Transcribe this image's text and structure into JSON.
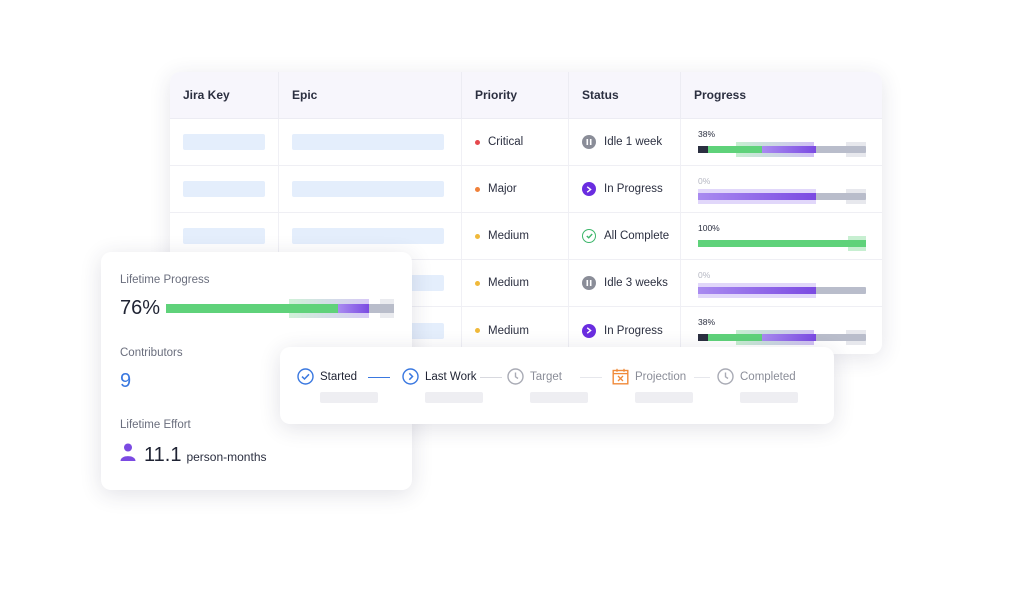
{
  "table": {
    "columns": [
      "Jira Key",
      "Epic",
      "Priority",
      "Status",
      "Progress"
    ],
    "rows": [
      {
        "priority": "Critical",
        "priority_color": "#e5484d",
        "status": "Idle 1 week",
        "status_icon": "pause-icon",
        "progress_label": "38%",
        "progress_value": 38,
        "muted": false
      },
      {
        "priority": "Major",
        "priority_color": "#f0813a",
        "status": "In Progress",
        "status_icon": "play-icon",
        "progress_label": "0%",
        "progress_value": 0,
        "muted": true
      },
      {
        "priority": "Medium",
        "priority_color": "#f0b93a",
        "status": "All Complete",
        "status_icon": "check-circle-icon",
        "progress_label": "100%",
        "progress_value": 100,
        "muted": false
      },
      {
        "priority": "Medium",
        "priority_color": "#f0b93a",
        "status": "Idle 3 weeks",
        "status_icon": "pause-icon",
        "progress_label": "0%",
        "progress_value": 0,
        "muted": true
      },
      {
        "priority": "Medium",
        "priority_color": "#f0b93a",
        "status": "In Progress",
        "status_icon": "play-icon",
        "progress_label": "38%",
        "progress_value": 38,
        "muted": false
      }
    ]
  },
  "summary": {
    "lifetime_progress_label": "Lifetime Progress",
    "lifetime_progress_value": "76%",
    "contributors_label": "Contributors",
    "contributors_value": "9",
    "effort_label": "Lifetime Effort",
    "effort_value": "11.1",
    "effort_unit": "person-months"
  },
  "timeline": {
    "steps": [
      {
        "label": "Started",
        "icon": "check-circle-icon",
        "active": true
      },
      {
        "label": "Last Work",
        "icon": "chevron-right-circle-icon",
        "active": true
      },
      {
        "label": "Target",
        "icon": "clock-icon",
        "active": false
      },
      {
        "label": "Projection",
        "icon": "calendar-x-icon",
        "active": false
      },
      {
        "label": "Completed",
        "icon": "clock-icon",
        "active": false
      }
    ]
  },
  "colors": {
    "green": "#5fd27a",
    "purple": "#7b4ae2",
    "purple_light": "#a98bf0",
    "dark": "#2b2f40",
    "track": "#b9bdcb",
    "blue": "#3a78e0",
    "orange": "#f08a3a",
    "gray_icon": "#a9abb5"
  }
}
